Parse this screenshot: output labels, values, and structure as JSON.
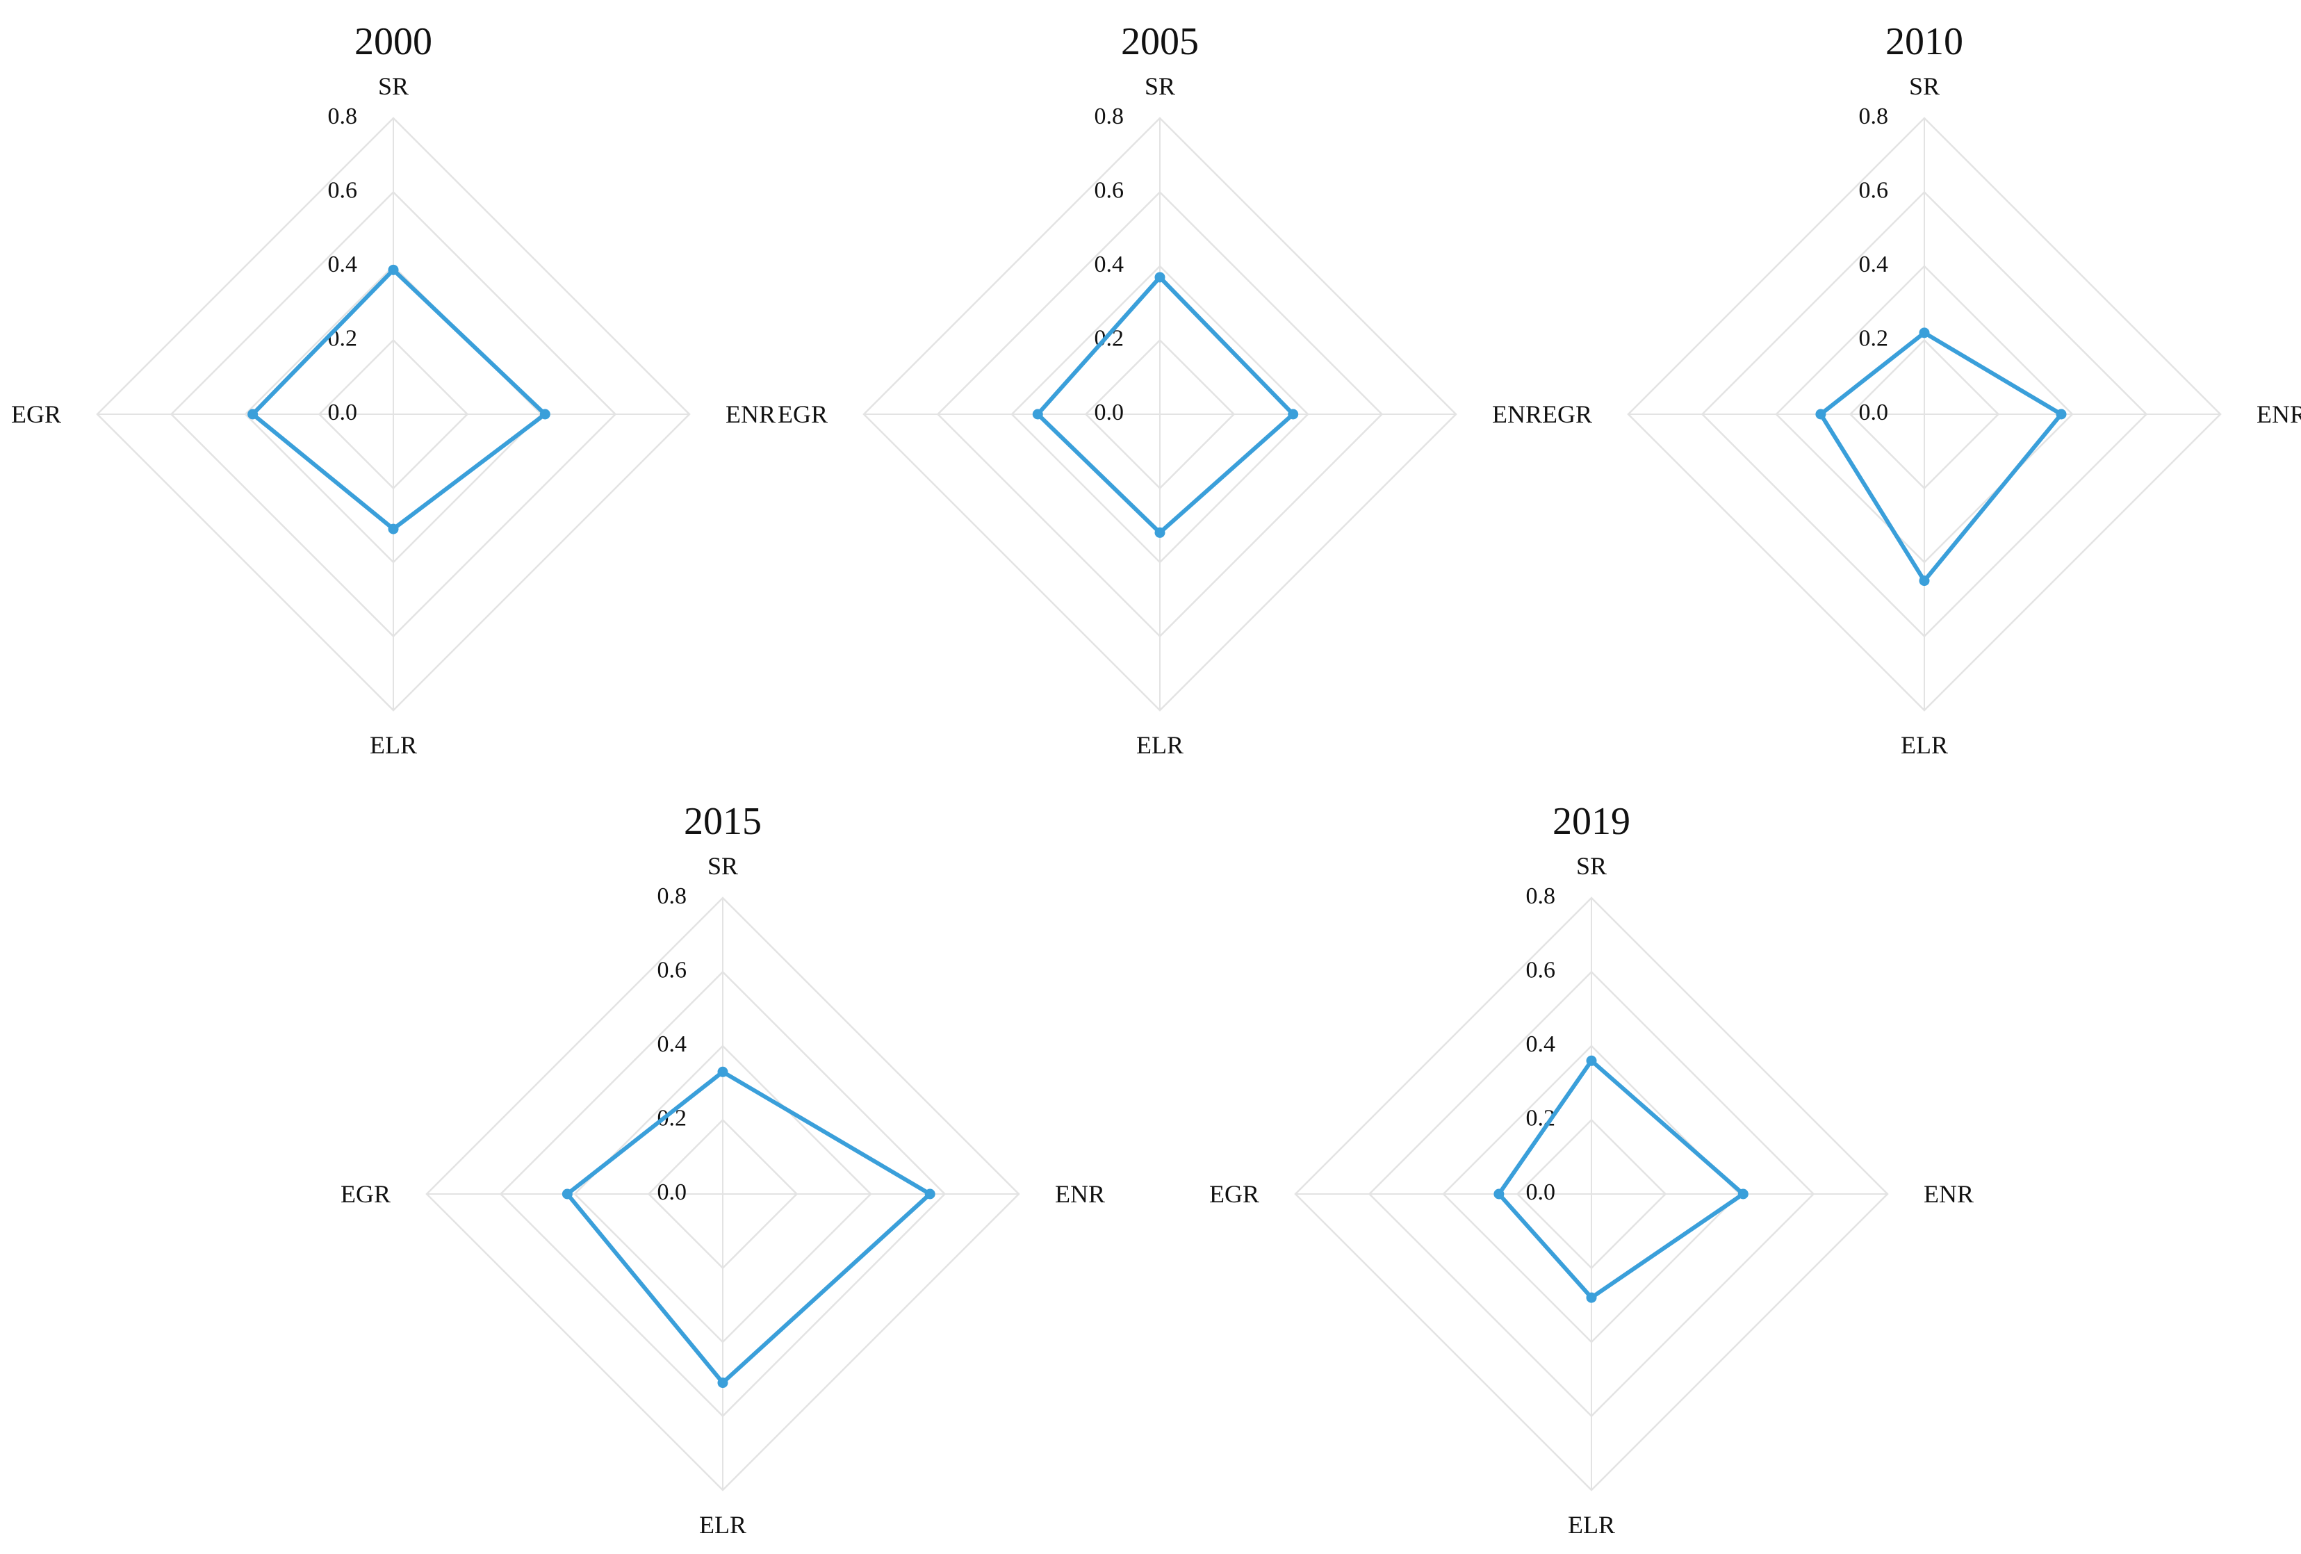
{
  "chart_data": [
    {
      "type": "radar",
      "title": "2000",
      "axes": [
        "SR",
        "ENR",
        "ELR",
        "EGR"
      ],
      "ticks": [
        "0.0",
        "0.2",
        "0.4",
        "0.6",
        "0.8"
      ],
      "range": [
        0,
        0.8
      ],
      "grid": true,
      "series": [
        {
          "values": [
            0.39,
            0.41,
            0.31,
            0.38
          ]
        }
      ]
    },
    {
      "type": "radar",
      "title": "2005",
      "axes": [
        "SR",
        "ENR",
        "ELR",
        "EGR"
      ],
      "ticks": [
        "0.0",
        "0.2",
        "0.4",
        "0.6",
        "0.8"
      ],
      "range": [
        0,
        0.8
      ],
      "grid": true,
      "series": [
        {
          "values": [
            0.37,
            0.36,
            0.32,
            0.33
          ]
        }
      ]
    },
    {
      "type": "radar",
      "title": "2010",
      "axes": [
        "SR",
        "ENR",
        "ELR",
        "EGR"
      ],
      "ticks": [
        "0.0",
        "0.2",
        "0.4",
        "0.6",
        "0.8"
      ],
      "range": [
        0,
        0.8
      ],
      "grid": true,
      "series": [
        {
          "values": [
            0.22,
            0.37,
            0.45,
            0.28
          ]
        }
      ]
    },
    {
      "type": "radar",
      "title": "2015",
      "axes": [
        "SR",
        "ENR",
        "ELR",
        "EGR"
      ],
      "ticks": [
        "0.0",
        "0.2",
        "0.4",
        "0.6",
        "0.8"
      ],
      "range": [
        0,
        0.8
      ],
      "grid": true,
      "series": [
        {
          "values": [
            0.33,
            0.56,
            0.51,
            0.42
          ]
        }
      ]
    },
    {
      "type": "radar",
      "title": "2019",
      "axes": [
        "SR",
        "ENR",
        "ELR",
        "EGR"
      ],
      "ticks": [
        "0.0",
        "0.2",
        "0.4",
        "0.6",
        "0.8"
      ],
      "range": [
        0,
        0.8
      ],
      "grid": true,
      "series": [
        {
          "values": [
            0.36,
            0.41,
            0.28,
            0.25
          ]
        }
      ]
    }
  ],
  "colors": {
    "series": "#3a9fda",
    "grid": "#e3e3e3"
  }
}
